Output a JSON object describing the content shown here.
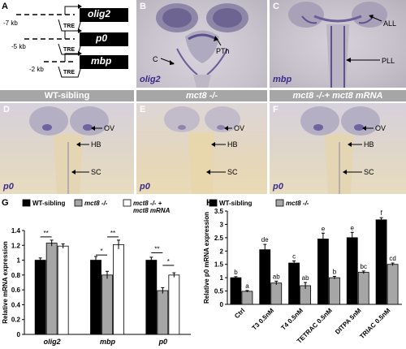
{
  "panelA": {
    "label": "A",
    "constructs": [
      {
        "kb": "-7 kb",
        "gene": "olig2",
        "tre": "TRE"
      },
      {
        "kb": "-5 kb",
        "gene": "p0",
        "tre": "TRE"
      },
      {
        "kb": "-2 kb",
        "gene": "mbp",
        "tre": "TRE"
      }
    ]
  },
  "panelB": {
    "label": "B",
    "gene": "olig2",
    "annotations": [
      "C",
      "PTh"
    ]
  },
  "panelC": {
    "label": "C",
    "gene": "mbp",
    "annotations": [
      "ALL",
      "PLL"
    ]
  },
  "row2": {
    "titles": [
      "WT-sibling",
      "mct8 -/-",
      "mct8 -/-+ mct8 mRNA"
    ],
    "panels": [
      {
        "label": "D",
        "gene": "p0",
        "annotations": [
          "OV",
          "HB",
          "SC"
        ]
      },
      {
        "label": "E",
        "gene": "p0",
        "annotations": [
          "OV",
          "HB",
          "SC"
        ]
      },
      {
        "label": "F",
        "gene": "p0",
        "annotations": [
          "OV",
          "HB",
          "SC"
        ]
      }
    ]
  },
  "colors": {
    "wt": "#000000",
    "ko": "#a6a6a6",
    "rescue": "#ffffff",
    "stain": "#3a2b8c",
    "title_bar": "#a6a6a6"
  },
  "chart_data": [
    {
      "panel": "G",
      "type": "bar",
      "ylabel": "Relative mRNA expression",
      "ylim": [
        0,
        1.4
      ],
      "yticks": [
        "0",
        "0.2",
        "0.4",
        "0.6",
        "0.8",
        "1",
        "1.2",
        "1.4"
      ],
      "categories": [
        "olig2",
        "mbp",
        "p0"
      ],
      "series": [
        {
          "name": "WT-sibling",
          "values": [
            1.0,
            1.0,
            1.0
          ],
          "errors": [
            0.03,
            0.05,
            0.04
          ],
          "color": "#000000"
        },
        {
          "name": "mct8 -/-",
          "values": [
            1.23,
            0.8,
            0.59
          ],
          "errors": [
            0.04,
            0.05,
            0.04
          ],
          "color": "#a6a6a6"
        },
        {
          "name": "mct8 -/- + mct8 mRNA",
          "values": [
            1.19,
            1.21,
            0.8
          ],
          "errors": [
            0.03,
            0.06,
            0.03
          ],
          "color": "#ffffff"
        }
      ],
      "significance": [
        {
          "group": 0,
          "from": 0,
          "to": 1,
          "label": "**"
        },
        {
          "group": 1,
          "from": 0,
          "to": 1,
          "label": "*"
        },
        {
          "group": 1,
          "from": 1,
          "to": 2,
          "label": "**"
        },
        {
          "group": 2,
          "from": 0,
          "to": 1,
          "label": "**"
        },
        {
          "group": 2,
          "from": 1,
          "to": 2,
          "label": "*"
        }
      ],
      "legend": [
        "WT-sibling",
        "mct8 -/-",
        "mct8 -/- + mct8 mRNA"
      ]
    },
    {
      "panel": "H",
      "type": "bar",
      "ylabel": "Relative p0 mRNA expression",
      "ylim": [
        0,
        3.5
      ],
      "yticks": [
        "0",
        "0.5",
        "1",
        "1.5",
        "2",
        "2.5",
        "3",
        "3.5"
      ],
      "categories": [
        "Ctrl",
        "T3 0.5nM",
        "T4 0.5nM",
        "TETRAC 0.5nM",
        "DITPA 5nM",
        "TRIAC 0.5nM"
      ],
      "series": [
        {
          "name": "WT-sibling",
          "values": [
            1.0,
            2.05,
            1.55,
            2.45,
            2.5,
            3.17
          ],
          "errors": [
            0.04,
            0.2,
            0.08,
            0.22,
            0.2,
            0.08
          ],
          "color": "#000000"
        },
        {
          "name": "mct8 -/-",
          "values": [
            0.49,
            0.8,
            0.7,
            1.0,
            1.2,
            1.5
          ],
          "errors": [
            0.03,
            0.07,
            0.12,
            0.05,
            0.05,
            0.05
          ],
          "color": "#a6a6a6"
        }
      ],
      "letters": [
        [
          "b",
          "a"
        ],
        [
          "de",
          "ab"
        ],
        [
          "c",
          "ab"
        ],
        [
          "e",
          "b"
        ],
        [
          "e",
          "bc"
        ],
        [
          "f",
          "cd"
        ]
      ],
      "legend": [
        "WT-sibling",
        "mct8 -/-"
      ]
    }
  ]
}
